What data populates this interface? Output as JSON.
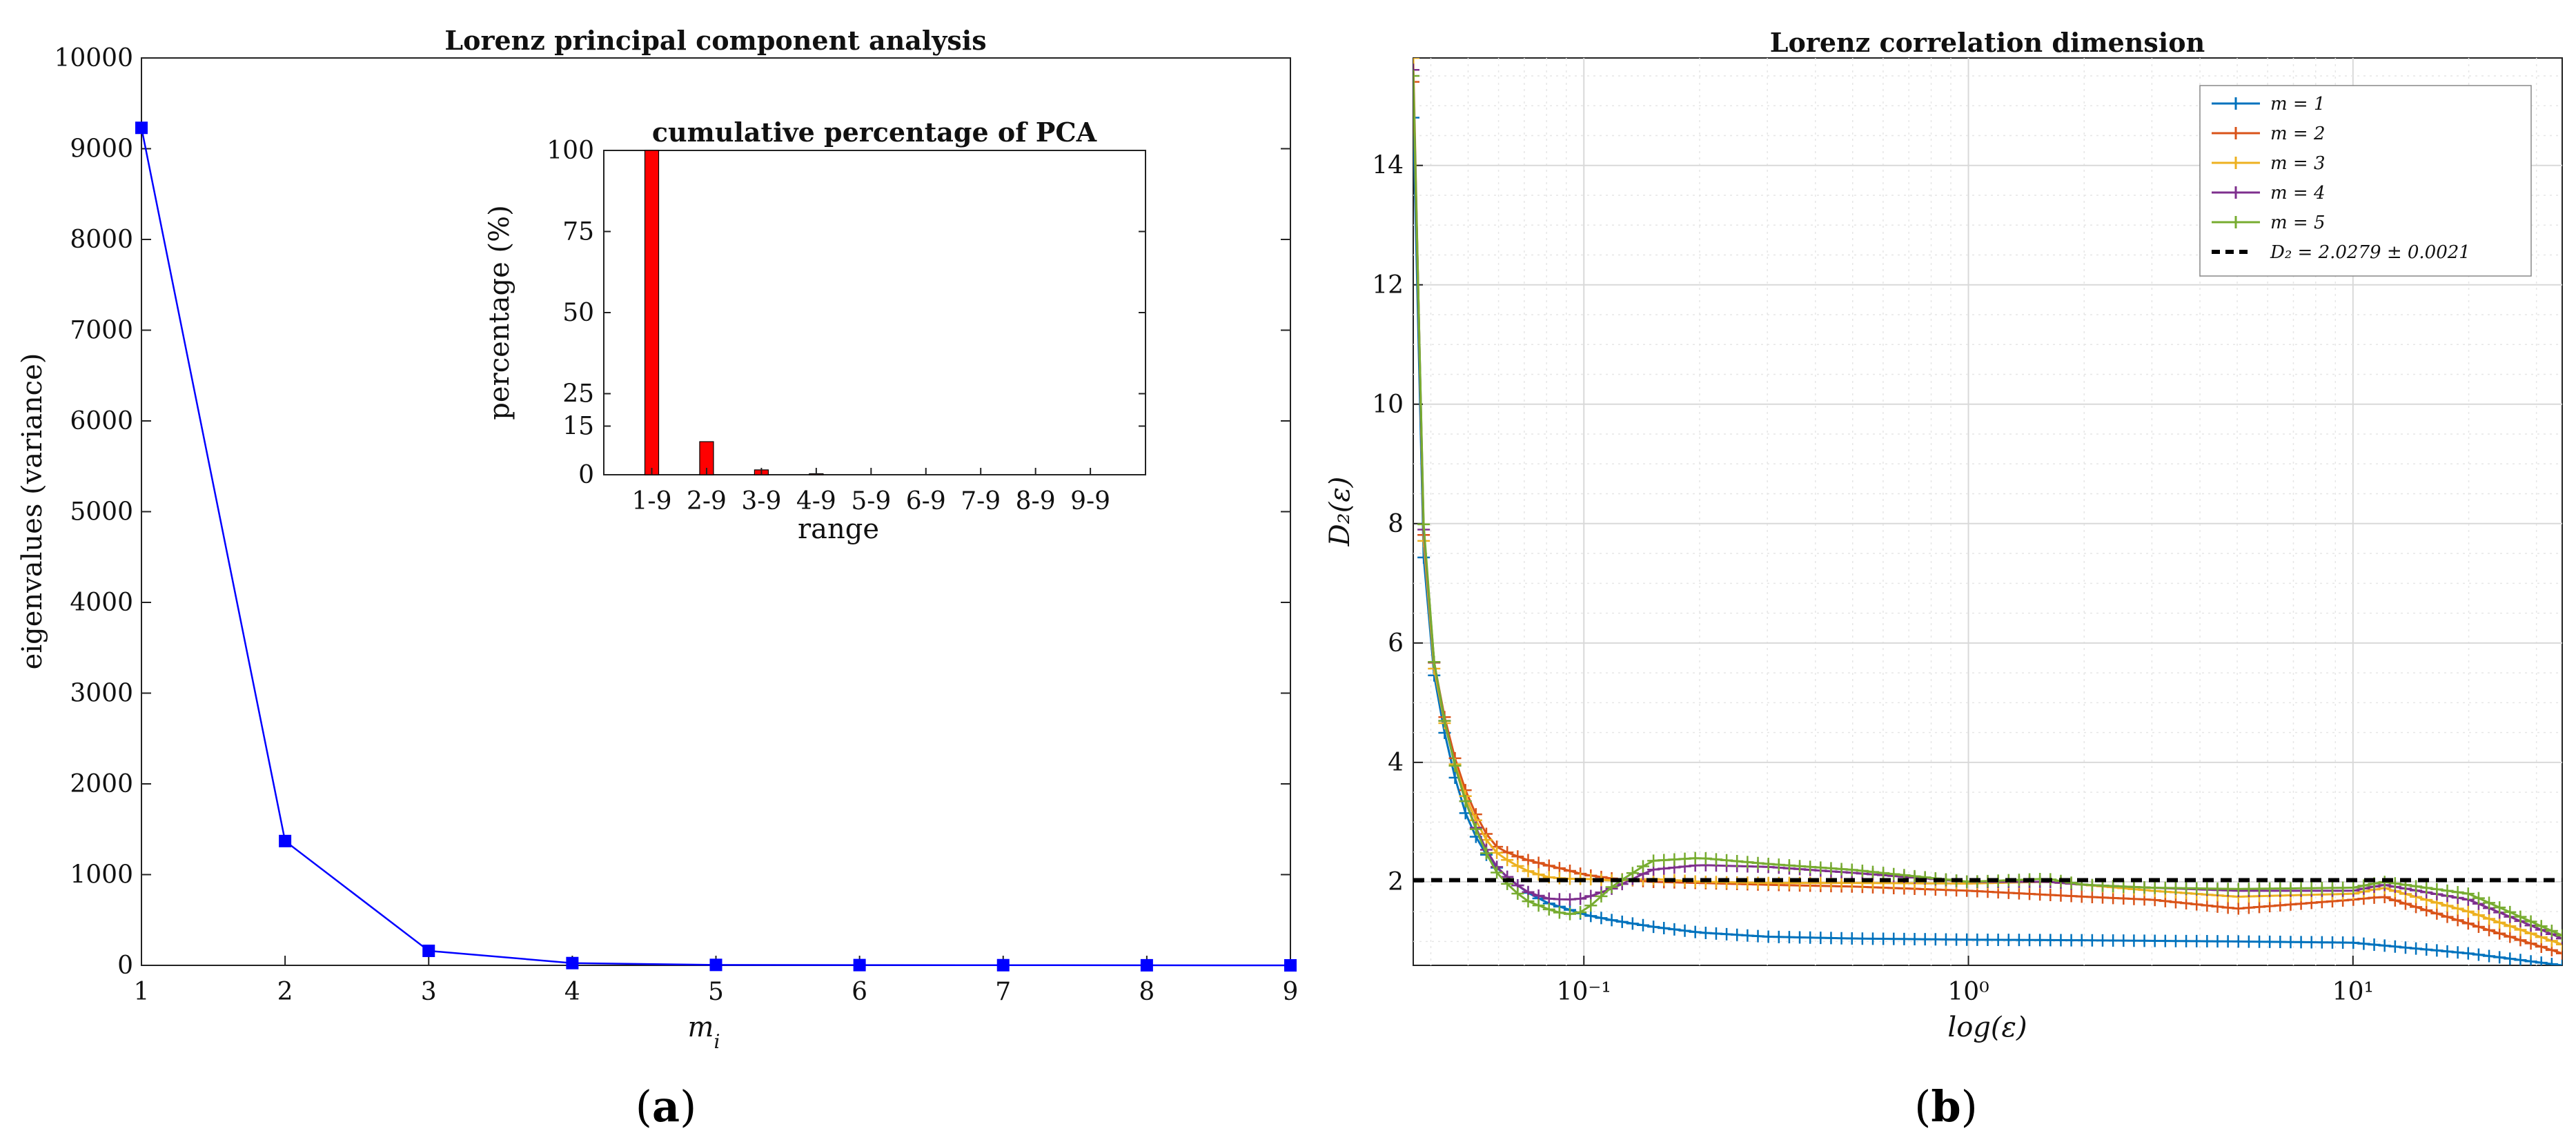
{
  "chart_data": [
    {
      "type": "line",
      "title": "Lorenz principal component analysis",
      "xlabel": "m",
      "xlabel_sub": "i",
      "ylabel": "eigenvalues (variance)",
      "xlim": [
        1,
        9
      ],
      "ylim": [
        0,
        10000
      ],
      "xticks": [
        "1",
        "2",
        "3",
        "4",
        "5",
        "6",
        "7",
        "8",
        "9"
      ],
      "yticks": [
        "0",
        "1000",
        "2000",
        "3000",
        "4000",
        "5000",
        "6000",
        "7000",
        "8000",
        "9000",
        "10000"
      ],
      "x": [
        1,
        2,
        3,
        4,
        5,
        6,
        7,
        8,
        9
      ],
      "values": [
        9230,
        1370,
        160,
        25,
        5,
        3,
        2,
        1,
        0
      ],
      "color": "#0000ff",
      "caption": "(a)"
    },
    {
      "type": "bar",
      "title": "cumulative percentage of PCA",
      "xlabel": "range",
      "ylabel": "percentage (%)",
      "categories": [
        "1-9",
        "2-9",
        "3-9",
        "4-9",
        "5-9",
        "6-9",
        "7-9",
        "8-9",
        "9-9"
      ],
      "values": [
        100,
        10.2,
        1.5,
        0.3,
        0.05,
        0.03,
        0.02,
        0.01,
        0
      ],
      "ylim": [
        0,
        100
      ],
      "yticks": [
        "0",
        "15",
        "25",
        "50",
        "75",
        "100"
      ],
      "color": "#ff0000"
    },
    {
      "type": "line",
      "title": "Lorenz correlation dimension",
      "xlabel": "log(ε)",
      "ylabel": "D₂(ε)",
      "xscale": "log",
      "xlim": [
        0.036,
        35
      ],
      "ylim": [
        0.6,
        15.8
      ],
      "xticks": [
        "10⁻¹",
        "10⁰",
        "10¹"
      ],
      "yticks": [
        "2",
        "4",
        "6",
        "8",
        "10",
        "12",
        "14"
      ],
      "grid": true,
      "legend": "top-right",
      "caption": "(b)",
      "series": [
        {
          "name": "m = 1",
          "color": "#0072bd",
          "x": [
            0.036,
            0.038,
            0.041,
            0.045,
            0.05,
            0.055,
            0.06,
            0.07,
            0.08,
            0.09,
            0.1,
            0.12,
            0.15,
            0.2,
            0.3,
            0.5,
            1,
            2,
            5,
            10,
            20,
            35
          ],
          "values": [
            14.8,
            7.7,
            5.3,
            4.0,
            3.0,
            2.5,
            2.2,
            1.85,
            1.65,
            1.55,
            1.45,
            1.35,
            1.25,
            1.15,
            1.08,
            1.05,
            1.03,
            1.02,
            1.0,
            0.98,
            0.8,
            0.6
          ]
        },
        {
          "name": "m = 2",
          "color": "#d95319",
          "x": [
            0.036,
            0.038,
            0.041,
            0.045,
            0.05,
            0.055,
            0.06,
            0.07,
            0.08,
            0.09,
            0.1,
            0.12,
            0.15,
            0.2,
            0.3,
            0.5,
            1,
            2,
            3,
            5,
            10,
            12,
            20,
            35
          ],
          "values": [
            15.4,
            8.1,
            5.5,
            4.3,
            3.4,
            2.85,
            2.55,
            2.38,
            2.28,
            2.2,
            2.12,
            2.05,
            2.0,
            1.98,
            1.95,
            1.92,
            1.85,
            1.75,
            1.7,
            1.55,
            1.7,
            1.75,
            1.3,
            0.8
          ]
        },
        {
          "name": "m = 3",
          "color": "#edb120",
          "x": [
            0.036,
            0.038,
            0.041,
            0.045,
            0.05,
            0.055,
            0.06,
            0.07,
            0.08,
            0.09,
            0.1,
            0.12,
            0.15,
            0.2,
            0.3,
            0.5,
            1,
            1.6,
            2,
            3,
            5,
            10,
            12,
            20,
            35
          ],
          "values": [
            15.8,
            8.0,
            5.4,
            4.2,
            3.3,
            2.75,
            2.45,
            2.2,
            2.08,
            2.05,
            2.05,
            2.02,
            2.05,
            2.0,
            1.98,
            1.98,
            1.97,
            2.0,
            1.95,
            1.85,
            1.75,
            1.8,
            1.9,
            1.5,
            0.95
          ]
        },
        {
          "name": "m = 4",
          "color": "#7e2f8e",
          "x": [
            0.036,
            0.038,
            0.041,
            0.045,
            0.05,
            0.055,
            0.06,
            0.07,
            0.08,
            0.09,
            0.1,
            0.12,
            0.15,
            0.2,
            0.3,
            0.5,
            1,
            1.6,
            2,
            3,
            5,
            10,
            12,
            20,
            35
          ],
          "values": [
            15.6,
            8.2,
            5.5,
            4.2,
            3.2,
            2.6,
            2.2,
            1.85,
            1.72,
            1.7,
            1.72,
            1.9,
            2.2,
            2.28,
            2.25,
            2.15,
            2.0,
            2.0,
            1.95,
            1.9,
            1.85,
            1.85,
            1.95,
            1.7,
            1.05
          ]
        },
        {
          "name": "m = 5",
          "color": "#77ac30",
          "x": [
            0.036,
            0.038,
            0.041,
            0.045,
            0.05,
            0.055,
            0.06,
            0.07,
            0.08,
            0.09,
            0.1,
            0.12,
            0.15,
            0.2,
            0.3,
            0.5,
            1,
            1.6,
            2,
            3,
            5,
            10,
            12,
            20,
            35
          ],
          "values": [
            15.5,
            8.3,
            5.5,
            4.2,
            3.2,
            2.55,
            2.1,
            1.7,
            1.55,
            1.45,
            1.5,
            1.95,
            2.35,
            2.4,
            2.3,
            2.2,
            2.0,
            2.05,
            1.95,
            1.9,
            1.88,
            1.9,
            2.0,
            1.8,
            1.1
          ]
        },
        {
          "name": "D₂ = 2.0279 ± 0.0021",
          "color": "#000000",
          "dashed": true,
          "x": [
            0.036,
            35
          ],
          "values": [
            2.0279,
            2.0279
          ]
        }
      ]
    }
  ]
}
